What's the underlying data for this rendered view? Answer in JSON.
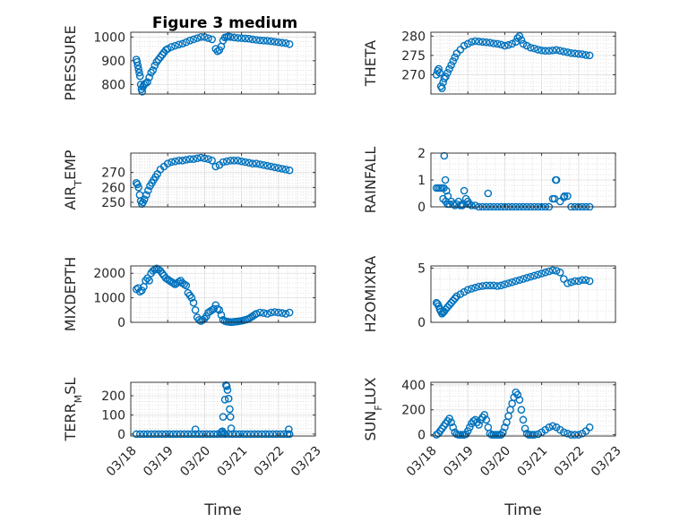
{
  "title": "Figure 3 medium",
  "marker_color": "#0072BD",
  "chart_data": [
    {
      "type": "scatter",
      "ylabel": "PRESSURE",
      "ylim": [
        760,
        1020
      ],
      "yticks": [
        800,
        900,
        1000
      ],
      "xlim": [
        0,
        5
      ],
      "xticks": [
        "",
        "",
        "",
        "",
        "",
        ""
      ],
      "xlabel": "",
      "grid": true,
      "x": [
        0.15,
        0.17,
        0.19,
        0.21,
        0.23,
        0.25,
        0.27,
        0.29,
        0.31,
        0.33,
        0.36,
        0.4,
        0.45,
        0.5,
        0.55,
        0.6,
        0.65,
        0.7,
        0.75,
        0.8,
        0.85,
        0.9,
        0.95,
        1.0,
        1.1,
        1.2,
        1.3,
        1.4,
        1.5,
        1.6,
        1.7,
        1.8,
        1.9,
        2.0,
        2.1,
        2.2,
        2.3,
        2.35,
        2.4,
        2.45,
        2.5,
        2.55,
        2.6,
        2.65,
        2.7,
        2.8,
        2.9,
        3.0,
        3.1,
        3.2,
        3.3,
        3.4,
        3.5,
        3.6,
        3.7,
        3.8,
        3.9,
        4.0,
        4.1,
        4.2,
        4.3
      ],
      "values": [
        905,
        895,
        880,
        865,
        850,
        835,
        800,
        780,
        770,
        790,
        800,
        805,
        810,
        830,
        850,
        860,
        880,
        895,
        905,
        915,
        925,
        935,
        945,
        950,
        958,
        963,
        968,
        972,
        978,
        985,
        990,
        995,
        1000,
        1000,
        995,
        990,
        950,
        940,
        945,
        960,
        985,
        998,
        1000,
        1003,
        1000,
        998,
        996,
        995,
        994,
        993,
        990,
        988,
        986,
        985,
        984,
        982,
        980,
        978,
        976,
        974,
        970
      ]
    },
    {
      "type": "scatter",
      "ylabel": "THETA",
      "ylim": [
        265,
        281
      ],
      "yticks": [
        270,
        275,
        280
      ],
      "xlim": [
        0,
        5
      ],
      "xticks": [
        "",
        "",
        "",
        "",
        "",
        ""
      ],
      "xlabel": "",
      "grid": true,
      "x": [
        0.15,
        0.18,
        0.21,
        0.24,
        0.27,
        0.3,
        0.33,
        0.36,
        0.4,
        0.45,
        0.5,
        0.55,
        0.6,
        0.65,
        0.7,
        0.8,
        0.9,
        1.0,
        1.1,
        1.2,
        1.3,
        1.4,
        1.5,
        1.6,
        1.7,
        1.8,
        1.9,
        2.0,
        2.1,
        2.2,
        2.3,
        2.35,
        2.4,
        2.45,
        2.5,
        2.6,
        2.7,
        2.8,
        2.9,
        3.0,
        3.1,
        3.2,
        3.3,
        3.4,
        3.5,
        3.6,
        3.7,
        3.8,
        3.9,
        4.0,
        4.1,
        4.2,
        4.3
      ],
      "values": [
        270.0,
        271.0,
        271.5,
        270.5,
        267.0,
        266.5,
        268.0,
        269.0,
        269.5,
        270.5,
        271.5,
        272.5,
        273.5,
        274.5,
        275.5,
        276.5,
        277.5,
        278.0,
        278.5,
        278.7,
        278.6,
        278.5,
        278.4,
        278.3,
        278.1,
        278.0,
        277.8,
        277.5,
        277.7,
        278.0,
        278.5,
        279.5,
        280.0,
        279.0,
        278.0,
        277.5,
        277.0,
        276.8,
        276.5,
        276.3,
        276.2,
        276.2,
        276.3,
        276.4,
        276.2,
        276.0,
        275.8,
        275.6,
        275.5,
        275.4,
        275.3,
        275.1,
        275.0
      ]
    },
    {
      "type": "scatter",
      "ylabel": "AIR_TEMP",
      "ylim": [
        247,
        283
      ],
      "yticks": [
        250,
        260,
        270
      ],
      "xlim": [
        0,
        5
      ],
      "xticks": [
        "",
        "",
        "",
        "",
        "",
        ""
      ],
      "xlabel": "",
      "grid": true,
      "x": [
        0.15,
        0.18,
        0.21,
        0.24,
        0.27,
        0.3,
        0.33,
        0.37,
        0.42,
        0.47,
        0.52,
        0.57,
        0.62,
        0.67,
        0.72,
        0.8,
        0.9,
        1.0,
        1.1,
        1.2,
        1.3,
        1.4,
        1.5,
        1.6,
        1.7,
        1.8,
        1.9,
        2.0,
        2.1,
        2.2,
        2.3,
        2.4,
        2.5,
        2.6,
        2.7,
        2.8,
        2.9,
        3.0,
        3.1,
        3.2,
        3.3,
        3.4,
        3.5,
        3.6,
        3.7,
        3.8,
        3.9,
        4.0,
        4.1,
        4.2,
        4.3
      ],
      "values": [
        263,
        262,
        260,
        255,
        251,
        249,
        250,
        252,
        255,
        258,
        261,
        263,
        265,
        267,
        269,
        272,
        274,
        276,
        277,
        277.5,
        278,
        278,
        278.5,
        279,
        279,
        279.5,
        280,
        279.5,
        279,
        278,
        274,
        275,
        277,
        277.5,
        278,
        278,
        278,
        277.5,
        277,
        276.5,
        276,
        276,
        275.5,
        275,
        274.5,
        274,
        273.5,
        273,
        272.5,
        272,
        271.5
      ]
    },
    {
      "type": "scatter",
      "ylabel": "RAINFALL",
      "ylim": [
        0,
        2
      ],
      "yticks": [
        0,
        1,
        2
      ],
      "xlim": [
        0,
        5
      ],
      "xticks": [
        "",
        "",
        "",
        "",
        "",
        ""
      ],
      "xlabel": "",
      "grid": true,
      "x": [
        0.15,
        0.2,
        0.25,
        0.3,
        0.33,
        0.36,
        0.39,
        0.42,
        0.46,
        0.5,
        0.55,
        0.6,
        0.65,
        0.7,
        0.75,
        0.8,
        0.85,
        0.9,
        0.95,
        1.0,
        1.05,
        1.1,
        1.2,
        1.3,
        1.4,
        1.5,
        1.6,
        1.7,
        1.8,
        1.9,
        2.0,
        2.1,
        2.2,
        2.3,
        2.4,
        2.5,
        2.6,
        2.7,
        2.8,
        2.9,
        3.0,
        3.1,
        3.2,
        3.3,
        3.35,
        3.4,
        3.5,
        3.6,
        3.7,
        3.8,
        3.9,
        4.0,
        4.1,
        4.2,
        4.3,
        0.35,
        0.4,
        0.45,
        0.85,
        1.0,
        1.55,
        3.38,
        3.62
      ],
      "values": [
        0.7,
        0.7,
        0.7,
        0.7,
        0.3,
        1.9,
        1.0,
        0.6,
        0.4,
        0.1,
        0.2,
        0.1,
        0.05,
        0.1,
        0.2,
        0.05,
        0.1,
        0.6,
        0.3,
        0.2,
        0.1,
        0.05,
        0.05,
        0,
        0,
        0,
        0,
        0,
        0,
        0,
        0,
        0,
        0,
        0,
        0,
        0,
        0,
        0,
        0,
        0,
        0,
        0,
        0,
        0.3,
        0.3,
        1.0,
        0.2,
        0.35,
        0.4,
        0,
        0,
        0,
        0,
        0,
        0,
        0.7,
        0.2,
        0.1,
        0.05,
        0.1,
        0.5,
        1.0,
        0.4
      ]
    },
    {
      "type": "scatter",
      "ylabel": "MIXDEPTH",
      "ylim": [
        0,
        2300
      ],
      "yticks": [
        0,
        1000,
        2000
      ],
      "xlim": [
        0,
        5
      ],
      "xticks": [
        "",
        "",
        "",
        "",
        "",
        ""
      ],
      "xlabel": "",
      "grid": true,
      "x": [
        0.15,
        0.2,
        0.25,
        0.3,
        0.35,
        0.4,
        0.45,
        0.5,
        0.55,
        0.6,
        0.65,
        0.7,
        0.75,
        0.8,
        0.85,
        0.9,
        0.95,
        1.0,
        1.05,
        1.1,
        1.15,
        1.2,
        1.25,
        1.3,
        1.35,
        1.4,
        1.45,
        1.5,
        1.55,
        1.6,
        1.65,
        1.7,
        1.75,
        1.8,
        1.85,
        1.9,
        1.95,
        2.0,
        2.05,
        2.1,
        2.15,
        2.2,
        2.25,
        2.3,
        2.35,
        2.4,
        2.45,
        2.5,
        2.55,
        2.6,
        2.65,
        2.7,
        2.75,
        2.8,
        2.85,
        2.9,
        2.95,
        3.0,
        3.05,
        3.1,
        3.15,
        3.2,
        3.25,
        3.3,
        3.35,
        3.4,
        3.5,
        3.6,
        3.7,
        3.8,
        3.9,
        4.0,
        4.1,
        4.2,
        4.3
      ],
      "values": [
        1350,
        1400,
        1250,
        1300,
        1450,
        1700,
        1800,
        1700,
        2000,
        2100,
        2150,
        2200,
        2150,
        2100,
        2000,
        1900,
        1800,
        1750,
        1700,
        1650,
        1600,
        1550,
        1600,
        1650,
        1700,
        1600,
        1550,
        1500,
        1200,
        1100,
        1000,
        800,
        500,
        200,
        100,
        50,
        100,
        150,
        250,
        400,
        450,
        500,
        550,
        700,
        550,
        500,
        300,
        100,
        50,
        30,
        20,
        10,
        10,
        20,
        30,
        40,
        50,
        60,
        80,
        100,
        120,
        150,
        200,
        250,
        300,
        350,
        400,
        380,
        350,
        400,
        420,
        400,
        380,
        350,
        400
      ]
    },
    {
      "type": "scatter",
      "ylabel": "H2OMIXRA",
      "ylim": [
        0,
        5.2
      ],
      "yticks": [
        0,
        5
      ],
      "xlim": [
        0,
        5
      ],
      "xticks": [
        "",
        "",
        "",
        "",
        "",
        ""
      ],
      "xlabel": "",
      "grid": true,
      "x": [
        0.15,
        0.18,
        0.21,
        0.24,
        0.27,
        0.3,
        0.33,
        0.36,
        0.4,
        0.45,
        0.5,
        0.55,
        0.6,
        0.65,
        0.7,
        0.8,
        0.9,
        1.0,
        1.1,
        1.2,
        1.3,
        1.4,
        1.5,
        1.6,
        1.7,
        1.8,
        1.9,
        2.0,
        2.1,
        2.2,
        2.3,
        2.4,
        2.5,
        2.6,
        2.7,
        2.8,
        2.9,
        3.0,
        3.1,
        3.2,
        3.3,
        3.4,
        3.5,
        3.6,
        3.7,
        3.8,
        3.9,
        4.0,
        4.1,
        4.2,
        4.3
      ],
      "values": [
        1.8,
        1.7,
        1.5,
        1.2,
        1.0,
        0.8,
        0.9,
        1.0,
        1.2,
        1.4,
        1.6,
        1.8,
        2.0,
        2.2,
        2.4,
        2.6,
        2.8,
        3.0,
        3.1,
        3.2,
        3.3,
        3.35,
        3.4,
        3.4,
        3.4,
        3.35,
        3.4,
        3.5,
        3.6,
        3.7,
        3.8,
        3.9,
        4.0,
        4.1,
        4.2,
        4.3,
        4.4,
        4.5,
        4.6,
        4.7,
        4.8,
        4.75,
        4.6,
        4.0,
        3.6,
        3.7,
        3.8,
        3.8,
        3.9,
        3.9,
        3.8
      ]
    },
    {
      "type": "scatter",
      "ylabel": "TERR_MSL",
      "ylim": [
        -10,
        270
      ],
      "yticks": [
        0,
        100,
        200
      ],
      "xlim": [
        0,
        5
      ],
      "xticks": [
        "03/18",
        "03/19",
        "03/20",
        "03/21",
        "03/22",
        "03/23"
      ],
      "xlabel": "Time",
      "grid": true,
      "x": [
        0.15,
        0.25,
        0.35,
        0.45,
        0.55,
        0.65,
        0.75,
        0.85,
        0.95,
        1.05,
        1.15,
        1.25,
        1.35,
        1.45,
        1.55,
        1.65,
        1.75,
        1.85,
        1.95,
        2.05,
        2.15,
        2.25,
        2.35,
        2.45,
        2.55,
        2.65,
        2.75,
        2.85,
        2.95,
        3.05,
        3.15,
        3.25,
        3.35,
        3.45,
        3.55,
        3.65,
        3.75,
        3.85,
        3.95,
        4.05,
        4.15,
        4.25,
        4.3,
        1.75,
        2.45,
        2.5,
        2.55,
        2.58,
        2.6,
        2.62,
        2.65,
        2.68,
        2.7,
        2.72,
        4.28,
        2.48,
        2.52
      ],
      "values": [
        0,
        0,
        0,
        0,
        0,
        0,
        0,
        0,
        0,
        0,
        0,
        0,
        0,
        0,
        0,
        0,
        0,
        0,
        0,
        0,
        0,
        0,
        0,
        0,
        0,
        0,
        0,
        0,
        0,
        0,
        0,
        0,
        0,
        0,
        0,
        0,
        0,
        0,
        0,
        0,
        0,
        0,
        0,
        25,
        10,
        90,
        180,
        255,
        250,
        230,
        185,
        130,
        90,
        30,
        25,
        15,
        5
      ]
    },
    {
      "type": "scatter",
      "ylabel": "SUN_FLUX",
      "ylim": [
        -10,
        420
      ],
      "yticks": [
        0,
        200,
        400
      ],
      "xlim": [
        0,
        5
      ],
      "xticks": [
        "03/18",
        "03/19",
        "03/20",
        "03/21",
        "03/22",
        "03/23"
      ],
      "xlabel": "Time",
      "grid": true,
      "x": [
        0.15,
        0.2,
        0.25,
        0.3,
        0.35,
        0.4,
        0.45,
        0.5,
        0.55,
        0.6,
        0.65,
        0.7,
        0.75,
        0.8,
        0.85,
        0.9,
        0.95,
        1.0,
        1.05,
        1.1,
        1.15,
        1.2,
        1.25,
        1.3,
        1.35,
        1.4,
        1.45,
        1.5,
        1.55,
        1.6,
        1.65,
        1.7,
        1.75,
        1.8,
        1.85,
        1.9,
        1.95,
        2.0,
        2.05,
        2.1,
        2.15,
        2.2,
        2.25,
        2.3,
        2.35,
        2.4,
        2.45,
        2.5,
        2.55,
        2.6,
        2.65,
        2.7,
        2.75,
        2.8,
        2.9,
        3.0,
        3.1,
        3.2,
        3.3,
        3.4,
        3.5,
        3.6,
        3.7,
        3.8,
        3.9,
        4.0,
        4.1,
        4.2,
        4.3
      ],
      "values": [
        0,
        10,
        30,
        50,
        70,
        90,
        110,
        130,
        100,
        60,
        20,
        5,
        0,
        0,
        0,
        0,
        5,
        30,
        60,
        90,
        110,
        120,
        100,
        80,
        120,
        140,
        160,
        120,
        60,
        10,
        0,
        0,
        0,
        0,
        0,
        0,
        20,
        60,
        100,
        150,
        200,
        250,
        300,
        340,
        320,
        280,
        200,
        120,
        50,
        10,
        0,
        0,
        0,
        0,
        5,
        20,
        40,
        60,
        70,
        60,
        40,
        20,
        10,
        0,
        0,
        0,
        10,
        30,
        60
      ]
    }
  ]
}
